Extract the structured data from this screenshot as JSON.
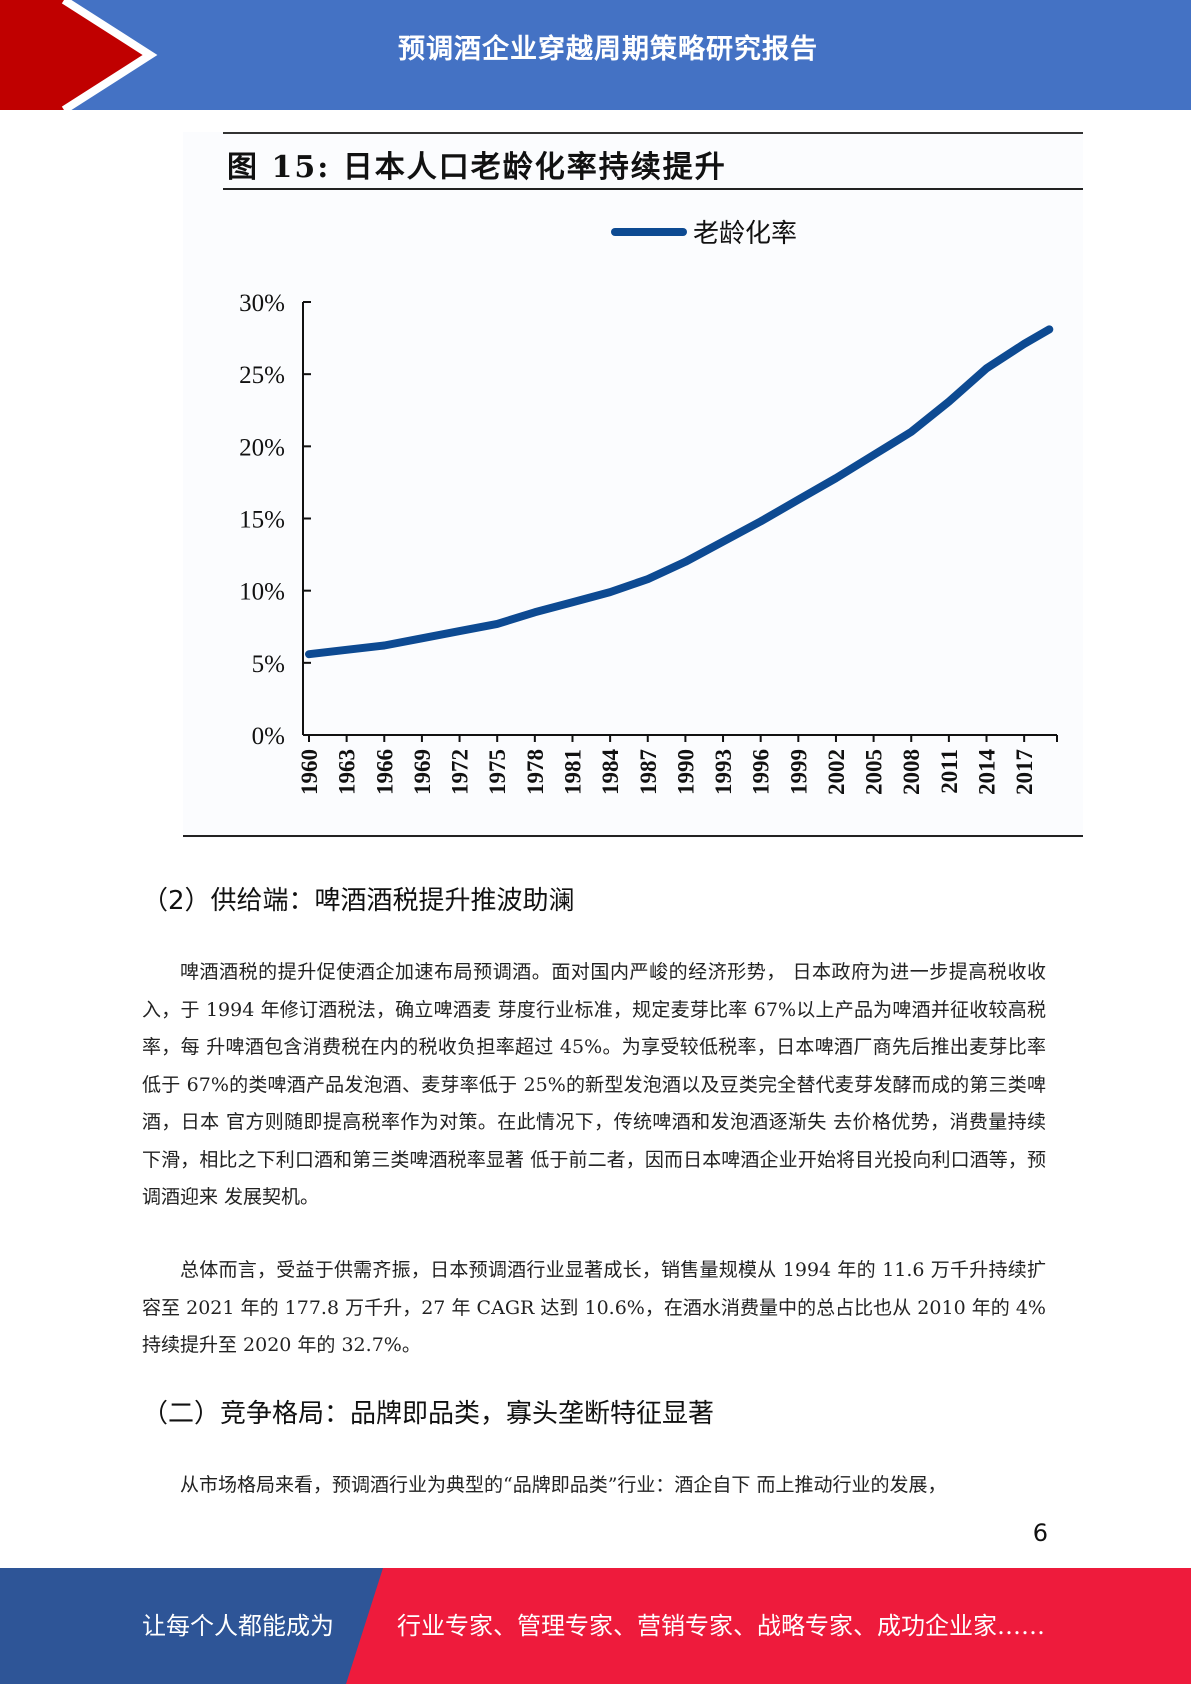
{
  "header": {
    "title": "预调酒企业穿越周期策略研究报告"
  },
  "figure": {
    "title": "图 15: 日本人口老龄化率持续提升"
  },
  "chart_data": {
    "type": "line",
    "series": [
      {
        "name": "老龄化率",
        "color": "#0d4a92",
        "x": [
          "1960",
          "1963",
          "1966",
          "1969",
          "1972",
          "1975",
          "1978",
          "1981",
          "1984",
          "1987",
          "1990",
          "1993",
          "1996",
          "1999",
          "2002",
          "2005",
          "2008",
          "2011",
          "2014",
          "2017",
          "2019"
        ],
        "values": [
          5.6,
          5.9,
          6.2,
          6.7,
          7.2,
          7.7,
          8.5,
          9.2,
          9.9,
          10.8,
          12.0,
          13.4,
          14.8,
          16.3,
          17.8,
          19.4,
          21.0,
          23.1,
          25.4,
          27.1,
          28.1
        ]
      }
    ],
    "x_ticks": [
      "1960",
      "1963",
      "1966",
      "1969",
      "1972",
      "1975",
      "1978",
      "1981",
      "1984",
      "1987",
      "1990",
      "1993",
      "1996",
      "1999",
      "2002",
      "2005",
      "2008",
      "2011",
      "2014",
      "2017"
    ],
    "y_ticks": [
      "0%",
      "5%",
      "10%",
      "15%",
      "20%",
      "25%",
      "30%"
    ],
    "ylim": [
      0,
      30
    ],
    "legend_position": "top-center",
    "grid": false
  },
  "sections": {
    "supply_heading": "（2）供给端：啤酒酒税提升推波助澜",
    "para1": "啤酒酒税的提升促使酒企加速布局预调酒。面对国内严峻的经济形势， 日本政府为进一步提高税收收入，于 1994 年修订酒税法，确立啤酒麦 芽度行业标准，规定麦芽比率 67%以上产品为啤酒并征收较高税率，每 升啤酒包含消费税在内的税收负担率超过 45%。为享受较低税率，日本啤酒厂商先后推出麦芽比率低于 67%的类啤酒产品发泡酒、麦芽率低于 25%的新型发泡酒以及豆类完全替代麦芽发酵而成的第三类啤酒，日本 官方则随即提高税率作为对策。在此情况下，传统啤酒和发泡酒逐渐失 去价格优势，消费量持续下滑，相比之下利口酒和第三类啤酒税率显著 低于前二者，因而日本啤酒企业开始将目光投向利口酒等，预调酒迎来 发展契机。",
    "para2": "总体而言，受益于供需齐振，日本预调酒行业显著成长，销售量规模从 1994 年的 11.6 万千升持续扩容至 2021 年的 177.8 万千升，27 年 CAGR 达到 10.6%，在酒水消费量中的总占比也从 2010 年的 4%持续提升至 2020 年的 32.7%。",
    "competition_heading": "（二）竞争格局：品牌即品类，寡头垄断特征显著",
    "para3": "从市场格局来看，预调酒行业为典型的“品牌即品类”行业：酒企自下 而上推动行业的发展，"
  },
  "page_number": "6",
  "footer": {
    "left_text": "让每个人都能成为",
    "right_text": "行业专家、管理专家、营销专家、战略专家、成功企业家……"
  },
  "colors": {
    "header_blue": "#4472c4",
    "header_red": "#c00000",
    "footer_blue": "#2e5597",
    "footer_red": "#ee1b3c",
    "line_blue": "#0d4a92"
  }
}
